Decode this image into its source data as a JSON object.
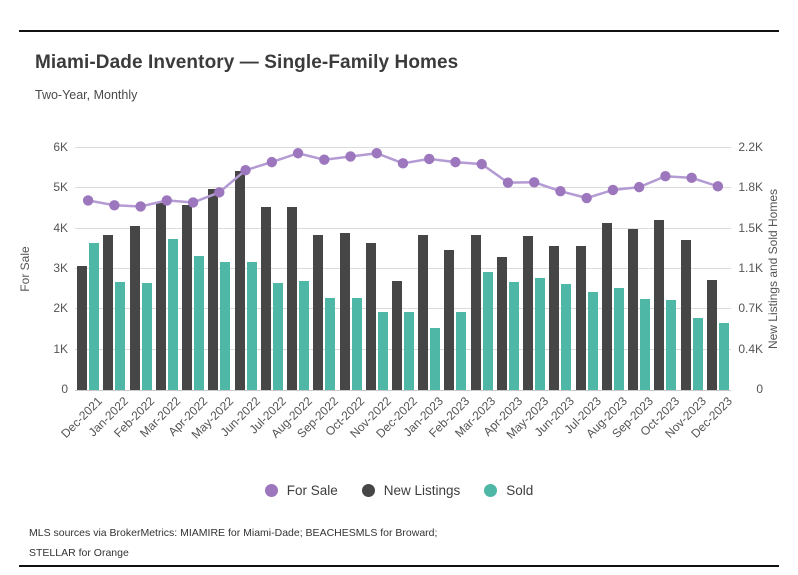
{
  "header": {
    "title": "Miami-Dade Inventory — Single-Family Homes",
    "subtitle": "Two-Year, Monthly"
  },
  "legend": [
    {
      "label": "For Sale",
      "color": "#9d77be"
    },
    {
      "label": "New Listings",
      "color": "#464646"
    },
    {
      "label": "Sold",
      "color": "#4eb7a5"
    }
  ],
  "footer": {
    "line1": "MLS sources via BrokerMetrics: MIAMIRE for Miami-Dade; BEACHESMLS for Broward;",
    "line2": "STELLAR for Orange"
  },
  "chart_data": {
    "type": "bar",
    "subtype": "combo-bar-line",
    "title": "Miami-Dade Inventory — Single-Family Homes",
    "subtitle": "Two-Year, Monthly",
    "grid": true,
    "legend_position": "bottom",
    "categories": [
      "Dec-2021",
      "Jan-2022",
      "Feb-2022",
      "Mar-2022",
      "Apr-2022",
      "May-2022",
      "Jun-2022",
      "Jul-2022",
      "Aug-2022",
      "Sep-2022",
      "Oct-2022",
      "Nov-2022",
      "Dec-2022",
      "Jan-2023",
      "Feb-2023",
      "Mar-2023",
      "Apr-2023",
      "May-2023",
      "Jun-2023",
      "Jul-2023",
      "Aug-2023",
      "Sep-2023",
      "Oct-2023",
      "Nov-2023",
      "Dec-2023"
    ],
    "left_axis": {
      "label": "For Sale",
      "ticks": [
        "0",
        "1K",
        "2K",
        "3K",
        "4K",
        "5K",
        "6K"
      ],
      "range": [
        0,
        6000
      ]
    },
    "right_axis": {
      "label": "New Listings and Sold Homes",
      "ticks": [
        "0",
        "0.4K",
        "0.7K",
        "1.1K",
        "1.5K",
        "1.8K",
        "2.2K"
      ],
      "range": [
        0,
        2200
      ]
    },
    "series": [
      {
        "name": "For Sale",
        "type": "line",
        "axis": "left",
        "values": [
          4700,
          4580,
          4550,
          4700,
          4650,
          4900,
          5450,
          5650,
          5870,
          5710,
          5790,
          5870,
          5620,
          5730,
          5650,
          5600,
          5140,
          5150,
          4930,
          4760,
          4960,
          5030,
          5300,
          5260,
          5050
        ]
      },
      {
        "name": "New Listings",
        "type": "bar",
        "axis": "right",
        "values": [
          1130,
          1410,
          1490,
          1700,
          1680,
          1830,
          1990,
          1660,
          1660,
          1410,
          1430,
          1340,
          995,
          1410,
          1270,
          1410,
          1210,
          1400,
          1310,
          1305,
          1515,
          1460,
          1550,
          1360,
          1000
        ]
      },
      {
        "name": "Sold",
        "type": "bar",
        "axis": "right",
        "values": [
          1340,
          980,
          970,
          1375,
          1220,
          1160,
          1160,
          970,
          990,
          835,
          835,
          705,
          705,
          560,
          705,
          1070,
          980,
          1015,
          965,
          895,
          930,
          830,
          815,
          655,
          605
        ]
      }
    ],
    "colors": {
      "for_sale_dot": "#9d77be",
      "for_sale_line": "#b49bd3",
      "new_listings": "#464646",
      "sold": "#4eb7a5",
      "gridline": "#dcdcdc",
      "axis_text": "#555555",
      "title_text": "#3b3b3b"
    }
  }
}
